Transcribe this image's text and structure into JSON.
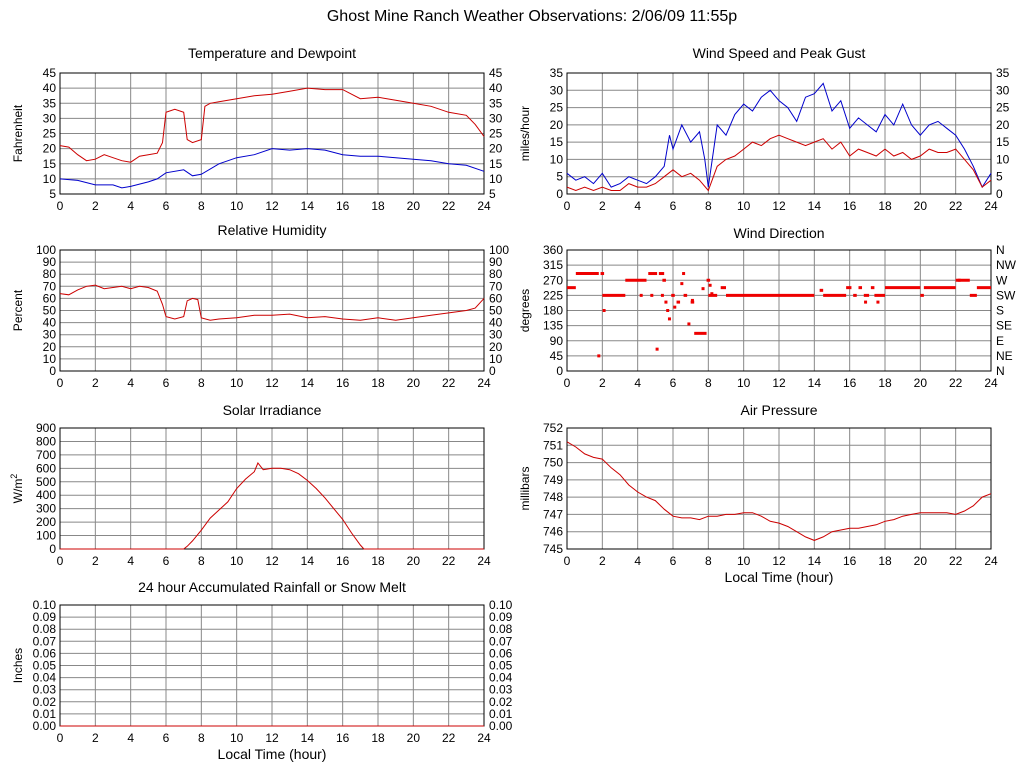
{
  "page": {
    "title": "Ghost Mine Ranch Weather Observations: 2/06/09 11:55p"
  },
  "colors": {
    "temperature": "#cc0000",
    "dewpoint": "#0000cc",
    "gust": "#0000cc",
    "speed": "#cc0000",
    "grid": "#888888"
  },
  "chart_data": [
    {
      "id": "temp",
      "type": "line",
      "title": "Temperature and Dewpoint",
      "xlabel": "",
      "ylabel": "Fahrenheit",
      "xlim": [
        0,
        24
      ],
      "ylim": [
        5,
        45
      ],
      "xticks": [
        "0",
        "2",
        "4",
        "6",
        "8",
        "10",
        "12",
        "14",
        "16",
        "18",
        "20",
        "22",
        "24"
      ],
      "yticks": [
        "5",
        "10",
        "15",
        "20",
        "25",
        "30",
        "35",
        "40",
        "45"
      ],
      "right_ticks": [
        "5",
        "10",
        "15",
        "20",
        "25",
        "30",
        "35",
        "40",
        "45"
      ],
      "grid": true,
      "series": [
        {
          "x": [
            0,
            0.5,
            1,
            1.5,
            2,
            2.5,
            3,
            3.5,
            4,
            4.5,
            5,
            5.5,
            5.8,
            6,
            6.5,
            7,
            7.2,
            7.5,
            8,
            8.2,
            8.5,
            9,
            10,
            11,
            12,
            13,
            14,
            15,
            16,
            17,
            18,
            19,
            20,
            21,
            22,
            23,
            23.5,
            24
          ],
          "y": [
            21,
            20.5,
            18,
            16,
            16.5,
            18,
            17,
            16,
            15.5,
            17.5,
            18,
            18.5,
            22,
            32,
            33,
            32,
            23,
            22,
            23,
            34,
            35,
            35.5,
            36.5,
            37.5,
            38,
            39,
            40,
            39.5,
            39.5,
            36.5,
            37,
            36,
            35,
            34,
            32,
            31,
            28,
            24
          ],
          "color": "#cc0000"
        },
        {
          "x": [
            0,
            1,
            2,
            3,
            3.5,
            4,
            5,
            5.5,
            6,
            7,
            7.5,
            8,
            9,
            10,
            11,
            12,
            13,
            14,
            15,
            16,
            17,
            18,
            19,
            20,
            21,
            22,
            23,
            24
          ],
          "y": [
            10,
            9.5,
            8,
            8,
            7,
            7.5,
            9,
            10,
            12,
            13,
            11,
            11.5,
            15,
            17,
            18,
            20,
            19.5,
            20,
            19.5,
            18,
            17.5,
            17.5,
            17,
            16.5,
            16,
            15,
            14.5,
            12.5
          ],
          "color": "#0000cc"
        }
      ]
    },
    {
      "id": "wind",
      "type": "line",
      "title": "Wind Speed and Peak Gust",
      "xlabel": "",
      "ylabel": "miles/hour",
      "xlim": [
        0,
        24
      ],
      "ylim": [
        0,
        35
      ],
      "xticks": [
        "0",
        "2",
        "4",
        "6",
        "8",
        "10",
        "12",
        "14",
        "16",
        "18",
        "20",
        "22",
        "24"
      ],
      "yticks": [
        "0",
        "5",
        "10",
        "15",
        "20",
        "25",
        "30",
        "35"
      ],
      "right_ticks": [
        "0",
        "5",
        "10",
        "15",
        "20",
        "25",
        "30",
        "35"
      ],
      "grid": true,
      "series": [
        {
          "x": [
            0,
            0.5,
            1,
            1.5,
            2,
            2.5,
            3,
            3.5,
            4,
            4.5,
            5,
            5.5,
            5.8,
            6,
            6.5,
            7,
            7.5,
            7.8,
            8,
            8.5,
            9,
            9.5,
            10,
            10.5,
            11,
            11.5,
            12,
            12.5,
            13,
            13.5,
            14,
            14.5,
            15,
            15.5,
            16,
            16.5,
            17,
            17.5,
            18,
            18.5,
            19,
            19.5,
            20,
            20.5,
            21,
            21.5,
            22,
            22.5,
            23,
            23.5,
            24
          ],
          "y": [
            6,
            4,
            5,
            3,
            6,
            2,
            3,
            5,
            4,
            3,
            5,
            8,
            17,
            13,
            20,
            15,
            18,
            10,
            2,
            20,
            17,
            23,
            26,
            24,
            28,
            30,
            27,
            25,
            21,
            28,
            29,
            32,
            24,
            27,
            19,
            22,
            20,
            18,
            23,
            20,
            26,
            20,
            17,
            20,
            21,
            19,
            17,
            13,
            8,
            2,
            6
          ],
          "color": "#0000cc"
        },
        {
          "x": [
            0,
            0.5,
            1,
            1.5,
            2,
            2.5,
            3,
            3.5,
            4,
            4.5,
            5,
            5.5,
            6,
            6.5,
            7,
            7.5,
            8,
            8.5,
            9,
            9.5,
            10,
            10.5,
            11,
            11.5,
            12,
            12.5,
            13,
            13.5,
            14,
            14.5,
            15,
            15.5,
            16,
            16.5,
            17,
            17.5,
            18,
            18.5,
            19,
            19.5,
            20,
            20.5,
            21,
            21.5,
            22,
            22.5,
            23,
            23.5,
            24
          ],
          "y": [
            2,
            1,
            2,
            1,
            2,
            1,
            1,
            3,
            2,
            2,
            3,
            5,
            7,
            5,
            6,
            4,
            1,
            8,
            10,
            11,
            13,
            15,
            14,
            16,
            17,
            16,
            15,
            14,
            15,
            16,
            13,
            15,
            11,
            13,
            12,
            11,
            13,
            11,
            12,
            10,
            11,
            13,
            12,
            12,
            13,
            10,
            7,
            2,
            4
          ],
          "color": "#cc0000"
        }
      ]
    },
    {
      "id": "rh",
      "type": "line",
      "title": "Relative Humidity",
      "xlabel": "",
      "ylabel": "Percent",
      "xlim": [
        0,
        24
      ],
      "ylim": [
        0,
        100
      ],
      "xticks": [
        "0",
        "2",
        "4",
        "6",
        "8",
        "10",
        "12",
        "14",
        "16",
        "18",
        "20",
        "22",
        "24"
      ],
      "yticks": [
        "0",
        "10",
        "20",
        "30",
        "40",
        "50",
        "60",
        "70",
        "80",
        "90",
        "100"
      ],
      "right_ticks": [
        "0",
        "10",
        "20",
        "30",
        "40",
        "50",
        "60",
        "70",
        "80",
        "90",
        "100"
      ],
      "grid": true,
      "series": [
        {
          "x": [
            0,
            0.5,
            1,
            1.5,
            2,
            2.5,
            3,
            3.5,
            4,
            4.5,
            5,
            5.5,
            5.8,
            6,
            6.5,
            7,
            7.2,
            7.5,
            7.8,
            8,
            8.5,
            9,
            10,
            11,
            12,
            13,
            14,
            15,
            16,
            17,
            18,
            19,
            20,
            21,
            22,
            23,
            23.5,
            24
          ],
          "y": [
            64,
            63,
            67,
            70,
            71,
            68,
            69,
            70,
            68,
            70,
            69,
            66,
            55,
            45,
            43,
            45,
            58,
            60,
            59,
            44,
            42,
            43,
            44,
            46,
            46,
            47,
            44,
            45,
            43,
            42,
            44,
            42,
            44,
            46,
            48,
            50,
            52,
            60
          ],
          "color": "#cc0000"
        }
      ]
    },
    {
      "id": "dir",
      "type": "scatter",
      "title": "Wind Direction",
      "xlabel": "",
      "ylabel": "degrees",
      "xlim": [
        0,
        24
      ],
      "ylim": [
        0,
        360
      ],
      "xticks": [
        "0",
        "2",
        "4",
        "6",
        "8",
        "10",
        "12",
        "14",
        "16",
        "18",
        "20",
        "22",
        "24"
      ],
      "yticks": [
        "0",
        "45",
        "90",
        "135",
        "180",
        "225",
        "270",
        "315",
        "360"
      ],
      "right_ticks": [
        "N",
        "NE",
        "E",
        "SE",
        "S",
        "SW",
        "W",
        "NW",
        "N"
      ],
      "grid": true,
      "segments": [
        [
          0,
          0.5,
          248
        ],
        [
          0.5,
          1.8,
          290
        ],
        [
          1.9,
          2.1,
          290
        ],
        [
          2,
          3.3,
          225
        ],
        [
          3.3,
          4.5,
          270
        ],
        [
          4.6,
          5.1,
          290
        ],
        [
          5.2,
          5.5,
          290
        ],
        [
          5.4,
          5.6,
          270
        ],
        [
          5.9,
          6.1,
          225
        ],
        [
          6.2,
          6.4,
          205
        ],
        [
          6.6,
          6.8,
          225
        ],
        [
          7.0,
          7.2,
          205
        ],
        [
          7.2,
          7.9,
          112
        ],
        [
          7.9,
          8.1,
          270
        ],
        [
          8,
          8.5,
          225
        ],
        [
          8.7,
          9,
          248
        ],
        [
          9,
          14,
          225
        ],
        [
          14.3,
          14.5,
          240
        ],
        [
          14.5,
          15.8,
          225
        ],
        [
          15.8,
          16.1,
          248
        ],
        [
          16.2,
          16.4,
          225
        ],
        [
          16.5,
          16.7,
          248
        ],
        [
          16.8,
          17.1,
          225
        ],
        [
          17.2,
          17.4,
          248
        ],
        [
          17.4,
          18,
          225
        ],
        [
          18,
          20,
          248
        ],
        [
          20,
          20.2,
          225
        ],
        [
          20.2,
          22,
          248
        ],
        [
          22,
          22.3,
          270
        ],
        [
          22.3,
          22.8,
          270
        ],
        [
          22.8,
          23.2,
          225
        ],
        [
          23.2,
          24,
          248
        ]
      ],
      "points": [
        [
          1.8,
          45
        ],
        [
          2.1,
          180
        ],
        [
          4.2,
          225
        ],
        [
          4.8,
          225
        ],
        [
          5.1,
          65
        ],
        [
          5.4,
          225
        ],
        [
          5.6,
          205
        ],
        [
          5.7,
          180
        ],
        [
          5.8,
          155
        ],
        [
          6.1,
          190
        ],
        [
          6.5,
          260
        ],
        [
          6.6,
          290
        ],
        [
          6.9,
          140
        ],
        [
          7.1,
          210
        ],
        [
          7.7,
          245
        ],
        [
          8.1,
          255
        ],
        [
          8.2,
          230
        ],
        [
          16.9,
          205
        ],
        [
          17.6,
          205
        ],
        [
          22.2,
          270
        ]
      ]
    },
    {
      "id": "solar",
      "type": "area",
      "title": "Solar Irradiance",
      "xlabel": "",
      "ylabel": "W/m",
      "ylabel_sup": "2",
      "xlim": [
        0,
        24
      ],
      "ylim": [
        0,
        900
      ],
      "xticks": [
        "0",
        "2",
        "4",
        "6",
        "8",
        "10",
        "12",
        "14",
        "16",
        "18",
        "20",
        "22",
        "24"
      ],
      "yticks": [
        "0",
        "100",
        "200",
        "300",
        "400",
        "500",
        "600",
        "700",
        "800",
        "900"
      ],
      "grid": true,
      "series": [
        {
          "x": [
            0,
            7,
            7.2,
            7.5,
            8,
            8.5,
            9,
            9.5,
            10,
            10.5,
            11,
            11.2,
            11.5,
            12,
            12.5,
            13,
            13.5,
            14,
            14.5,
            15,
            15.5,
            16,
            16.5,
            17,
            17.2,
            17.5,
            18,
            24
          ],
          "y": [
            0,
            0,
            20,
            60,
            140,
            230,
            290,
            350,
            450,
            520,
            575,
            640,
            590,
            600,
            600,
            590,
            560,
            510,
            450,
            380,
            300,
            220,
            120,
            30,
            0,
            0,
            0,
            0
          ],
          "color": "#cc0000"
        }
      ]
    },
    {
      "id": "press",
      "type": "line",
      "title": "Air Pressure",
      "xlabel": "Local Time (hour)",
      "ylabel": "millibars",
      "xlim": [
        0,
        24
      ],
      "ylim": [
        745,
        752
      ],
      "xticks": [
        "0",
        "2",
        "4",
        "6",
        "8",
        "10",
        "12",
        "14",
        "16",
        "18",
        "20",
        "22",
        "24"
      ],
      "yticks": [
        "745",
        "746",
        "747",
        "748",
        "749",
        "750",
        "751",
        "752"
      ],
      "grid": true,
      "series": [
        {
          "x": [
            0,
            0.5,
            1,
            1.5,
            2,
            2.5,
            3,
            3.5,
            4,
            4.5,
            5,
            5.5,
            6,
            6.5,
            7,
            7.5,
            8,
            8.5,
            9,
            9.5,
            10,
            10.5,
            11,
            11.5,
            12,
            12.5,
            13,
            13.5,
            14,
            14.5,
            15,
            15.5,
            16,
            16.5,
            17,
            17.5,
            18,
            18.5,
            19,
            19.5,
            20,
            20.5,
            21,
            21.5,
            22,
            22.5,
            23,
            23.5,
            24
          ],
          "y": [
            751.2,
            750.9,
            750.5,
            750.3,
            750.2,
            749.7,
            749.3,
            748.7,
            748.3,
            748,
            747.8,
            747.3,
            746.9,
            746.8,
            746.8,
            746.7,
            746.9,
            746.9,
            747,
            747,
            747.1,
            747.1,
            746.9,
            746.6,
            746.5,
            746.3,
            746,
            745.7,
            745.5,
            745.7,
            746,
            746.1,
            746.2,
            746.2,
            746.3,
            746.4,
            746.6,
            746.7,
            746.9,
            747,
            747.1,
            747.1,
            747.1,
            747.1,
            747,
            747.2,
            747.5,
            748,
            748.2
          ],
          "color": "#cc0000"
        }
      ]
    },
    {
      "id": "rain",
      "type": "line",
      "title": "24 hour Accumulated Rainfall or Snow Melt",
      "xlabel": "Local Time (hour)",
      "ylabel": "Inches",
      "xlim": [
        0,
        24
      ],
      "ylim": [
        0,
        0.1
      ],
      "xticks": [
        "0",
        "2",
        "4",
        "6",
        "8",
        "10",
        "12",
        "14",
        "16",
        "18",
        "20",
        "22",
        "24"
      ],
      "yticks": [
        "0.00",
        "0.01",
        "0.02",
        "0.03",
        "0.04",
        "0.05",
        "0.06",
        "0.07",
        "0.08",
        "0.09",
        "0.10"
      ],
      "right_ticks": [
        "0.00",
        "0.01",
        "0.02",
        "0.03",
        "0.04",
        "0.05",
        "0.06",
        "0.07",
        "0.08",
        "0.09",
        "0.10"
      ],
      "grid": true,
      "series": [
        {
          "x": [
            0,
            24
          ],
          "y": [
            0,
            0
          ],
          "color": "#cc0000"
        }
      ]
    }
  ]
}
